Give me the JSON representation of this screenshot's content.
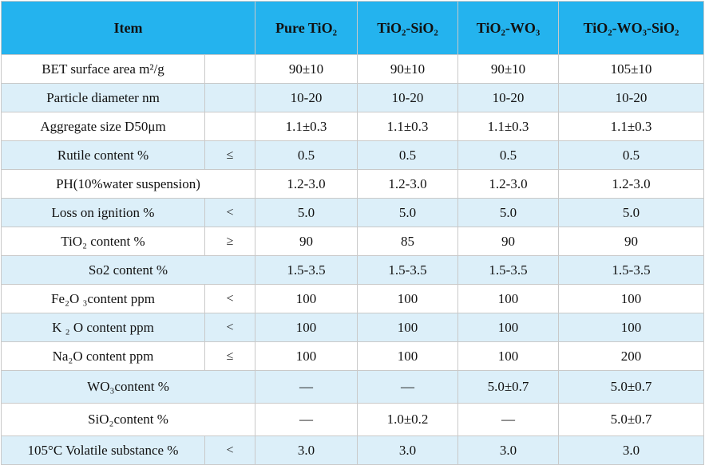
{
  "header": {
    "item": "Item",
    "col1": "Pure TiO₂",
    "col2": "TiO₂-SiO₂",
    "col3": "TiO₂-WO₃",
    "col4": "TiO₂-WO₃-SiO₂"
  },
  "rows": [
    {
      "label": "BET surface area m²/g",
      "sym": "",
      "v1": "90±10",
      "v2": "90±10",
      "v3": "90±10",
      "v4": "105±10"
    },
    {
      "label": "Particle diameter nm",
      "sym": "",
      "v1": "10-20",
      "v2": "10-20",
      "v3": "10-20",
      "v4": "10-20"
    },
    {
      "label": "Aggregate size D50μm",
      "sym": "",
      "v1": "1.1±0.3",
      "v2": "1.1±0.3",
      "v3": "1.1±0.3",
      "v4": "1.1±0.3"
    },
    {
      "label": "Rutile content %",
      "sym": "≤",
      "v1": "0.5",
      "v2": "0.5",
      "v3": "0.5",
      "v4": "0.5"
    },
    {
      "label": "PH(10%water  suspension)",
      "sym": "",
      "v1": "1.2-3.0",
      "v2": "1.2-3.0",
      "v3": "1.2-3.0",
      "v4": "1.2-3.0"
    },
    {
      "label": "Loss on ignition %",
      "sym": "<",
      "v1": "5.0",
      "v2": "5.0",
      "v3": "5.0",
      "v4": "5.0"
    },
    {
      "label": "TiO₂ content %",
      "sym": "≥",
      "v1": "90",
      "v2": "85",
      "v3": "90",
      "v4": "90"
    },
    {
      "label": "So2  content %",
      "sym": "",
      "v1": "1.5-3.5",
      "v2": "1.5-3.5",
      "v3": "1.5-3.5",
      "v4": "1.5-3.5"
    },
    {
      "label": "Fe₂O ₃content  ppm",
      "sym": "<",
      "v1": "100",
      "v2": "100",
      "v3": "100",
      "v4": "100"
    },
    {
      "label": "K ₂ O content ppm",
      "sym": "<",
      "v1": "100",
      "v2": "100",
      "v3": "100",
      "v4": "100"
    },
    {
      "label": "Na₂O content ppm",
      "sym": "≤",
      "v1": "100",
      "v2": "100",
      "v3": "100",
      "v4": "200"
    },
    {
      "label": "WO₃content  %",
      "sym": "",
      "v1": "—",
      "v2": "—",
      "v3": "5.0±0.7",
      "v4": "5.0±0.7"
    },
    {
      "label": "SiO₂content  %",
      "sym": "",
      "v1": "—",
      "v2": "1.0±0.2",
      "v3": "—",
      "v4": "5.0±0.7"
    },
    {
      "label": "105°C Volatile substance %",
      "sym": "<",
      "v1": "3.0",
      "v2": "3.0",
      "v3": "3.0",
      "v4": "3.0"
    }
  ]
}
